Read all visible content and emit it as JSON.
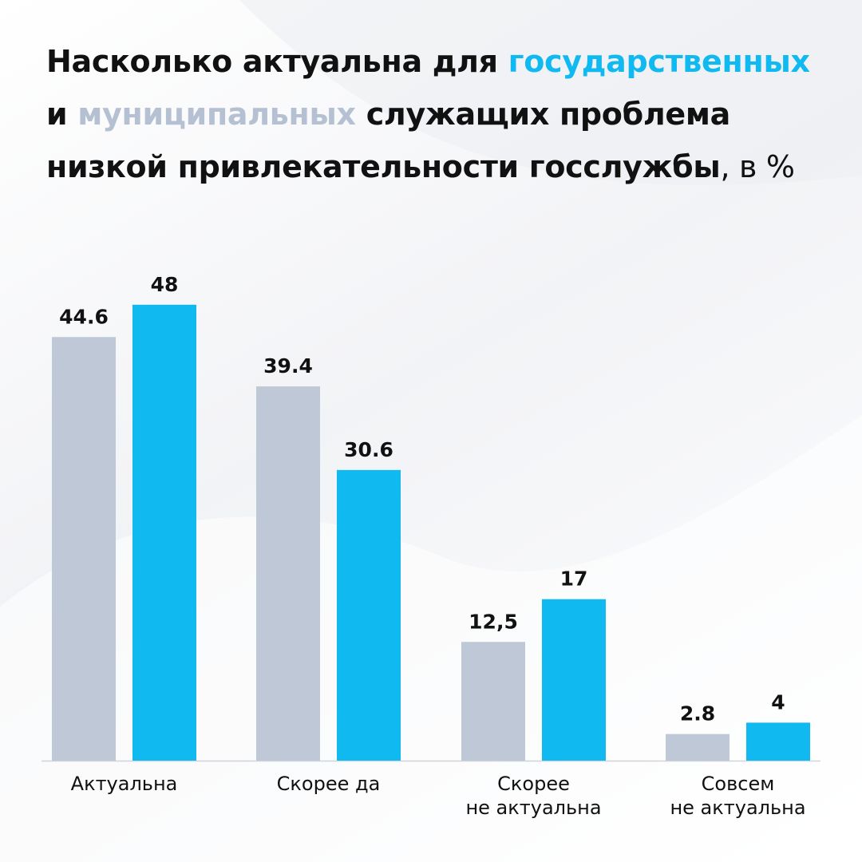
{
  "title": {
    "part1": "Насколько актуальна для ",
    "highlight1": "государственных",
    "part2": "и ",
    "highlight2": "муниципальных",
    "part3": " служащих проблема",
    "part4": "низкой привлекательности госслужбы",
    "suffix": ", в %"
  },
  "colors": {
    "state": "#10baf0",
    "municipal": "#bfc8d6",
    "text": "#111111",
    "axis": "#cfd3da"
  },
  "chart_data": {
    "type": "bar",
    "categories": [
      [
        "Актуальна"
      ],
      [
        "Скорее да"
      ],
      [
        "Скорее",
        "не актуальна"
      ],
      [
        "Совсем",
        "не актуальна"
      ]
    ],
    "series": [
      {
        "values": [
          44.6,
          39.4,
          12.5,
          2.8
        ],
        "labels": [
          "44.6",
          "39.4",
          "12,5",
          "2.8"
        ],
        "color": "#bfc8d6"
      },
      {
        "values": [
          48,
          30.6,
          17,
          4
        ],
        "labels": [
          "48",
          "30.6",
          "17",
          "4"
        ],
        "color": "#10baf0"
      }
    ],
    "ylim": [
      0,
      52
    ],
    "grid": false
  }
}
